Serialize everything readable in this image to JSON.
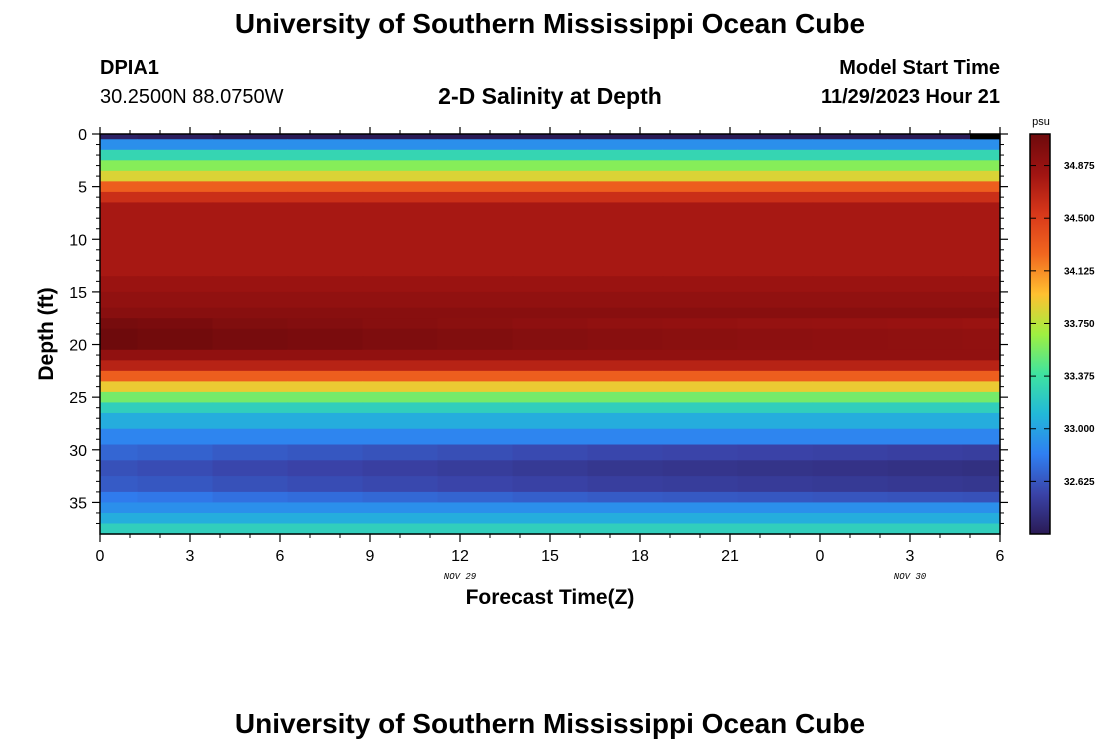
{
  "header": {
    "title": "University of Southern Mississippi Ocean Cube",
    "station_id": "DPIA1",
    "coords": "30.2500N  88.0750W",
    "chart_title": "2-D Salinity at Depth",
    "model_start_label": "Model Start Time",
    "model_start_value": "11/29/2023 Hour 21"
  },
  "footer": {
    "title": "University of Southern Mississippi Ocean Cube"
  },
  "colors": {
    "scale": [
      "#2a1a55",
      "#3a43a8",
      "#2f7ff2",
      "#22b8d8",
      "#3fe3a0",
      "#9ff040",
      "#ffc030",
      "#f2671f",
      "#d8381a",
      "#a01412",
      "#6e0a0c"
    ]
  },
  "chart_data": {
    "type": "heatmap",
    "title": "2-D Salinity at Depth",
    "xlabel": "Forecast Time(Z)",
    "ylabel": "Depth (ft)",
    "x_ticks": [
      "0",
      "3",
      "6",
      "9",
      "12",
      "15",
      "18",
      "21",
      "0",
      "3",
      "6"
    ],
    "x_range": [
      0,
      30
    ],
    "day_labels": [
      {
        "label": "NOV 29",
        "at": 12
      },
      {
        "label": "NOV 30",
        "at": 27
      }
    ],
    "y_ticks": [
      "0",
      "5",
      "10",
      "15",
      "20",
      "25",
      "30",
      "35"
    ],
    "y_range": [
      0,
      38
    ],
    "colorbar": {
      "unit": "psu",
      "range": [
        32.25,
        35.1
      ],
      "tick_labels": [
        "34.875",
        "34.500",
        "34.125",
        "33.750",
        "33.375",
        "33.000",
        "32.625"
      ]
    },
    "time_columns": [
      0,
      1.25,
      3.75,
      6.25,
      8.75,
      11.25,
      13.75,
      16.25,
      18.75,
      21.25,
      23.75,
      26.25,
      28.75
    ],
    "depth_layers": [
      {
        "top": 0.0,
        "bottom": 0.5,
        "psu": 32.25
      },
      {
        "top": 0.5,
        "bottom": 1.5,
        "psu": 32.9
      },
      {
        "top": 1.5,
        "bottom": 2.5,
        "psu": 33.3
      },
      {
        "top": 2.5,
        "bottom": 3.5,
        "psu": 33.6
      },
      {
        "top": 3.5,
        "bottom": 4.5,
        "psu": 33.85
      },
      {
        "top": 4.5,
        "bottom": 5.5,
        "psu": 34.3
      },
      {
        "top": 5.5,
        "bottom": 6.5,
        "psu": 34.6
      },
      {
        "top": 6.5,
        "bottom": 13.5,
        "psu": 34.78
      },
      {
        "top": 13.5,
        "bottom": 15.0,
        "psu": 34.85
      },
      {
        "top": 15.0,
        "bottom": 16.5,
        "psu": 34.9
      },
      {
        "top": 16.5,
        "bottom": 17.5,
        "psu": 34.95
      },
      {
        "top": 17.5,
        "bottom": 18.5,
        "psu": 35.0
      },
      {
        "top": 18.5,
        "bottom": 20.5,
        "psu": 35.05
      },
      {
        "top": 20.5,
        "bottom": 21.5,
        "psu": 34.9
      },
      {
        "top": 21.5,
        "bottom": 22.5,
        "psu": 34.7
      },
      {
        "top": 22.5,
        "bottom": 23.5,
        "psu": 34.3
      },
      {
        "top": 23.5,
        "bottom": 24.5,
        "psu": 33.9
      },
      {
        "top": 24.5,
        "bottom": 25.5,
        "psu": 33.55
      },
      {
        "top": 25.5,
        "bottom": 26.5,
        "psu": 33.25
      },
      {
        "top": 26.5,
        "bottom": 28.0,
        "psu": 33.05
      },
      {
        "top": 28.0,
        "bottom": 29.5,
        "psu": 32.85
      },
      {
        "top": 29.5,
        "bottom": 31.0,
        "psu": 32.65
      },
      {
        "top": 31.0,
        "bottom": 32.5,
        "psu": 32.55
      },
      {
        "top": 32.5,
        "bottom": 34.0,
        "psu": 32.6
      },
      {
        "top": 34.0,
        "bottom": 35.0,
        "psu": 32.75
      },
      {
        "top": 35.0,
        "bottom": 36.0,
        "psu": 32.9
      },
      {
        "top": 36.0,
        "bottom": 37.0,
        "psu": 33.05
      },
      {
        "top": 37.0,
        "bottom": 38.0,
        "psu": 33.25
      }
    ],
    "column_adjust": [
      0.05,
      0.03,
      0.0,
      -0.02,
      -0.04,
      -0.06,
      -0.08,
      -0.1,
      -0.11,
      -0.12,
      -0.13,
      -0.14,
      -0.15
    ]
  }
}
